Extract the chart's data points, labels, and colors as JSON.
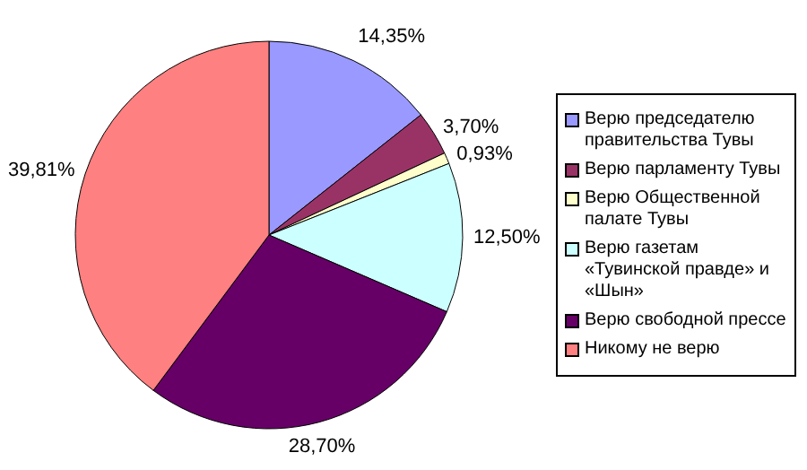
{
  "chart_data": {
    "type": "pie",
    "categories": [
      "Верю председателю правительства Тувы",
      "Верю парламенту Тувы",
      "Верю Общественной палате Тувы",
      "Верю газетам «Тувинской правде» и «Шын»",
      "Верю свободной прессе",
      "Никому не верю"
    ],
    "values": [
      14.35,
      3.7,
      0.93,
      12.5,
      28.7,
      39.81
    ],
    "value_labels": [
      "14,35%",
      "3,70%",
      "0,93%",
      "12,50%",
      "28,70%",
      "39,81%"
    ],
    "colors": [
      "#9999ff",
      "#993366",
      "#ffffcc",
      "#ccffff",
      "#660066",
      "#ff8080"
    ],
    "legend": "right"
  }
}
